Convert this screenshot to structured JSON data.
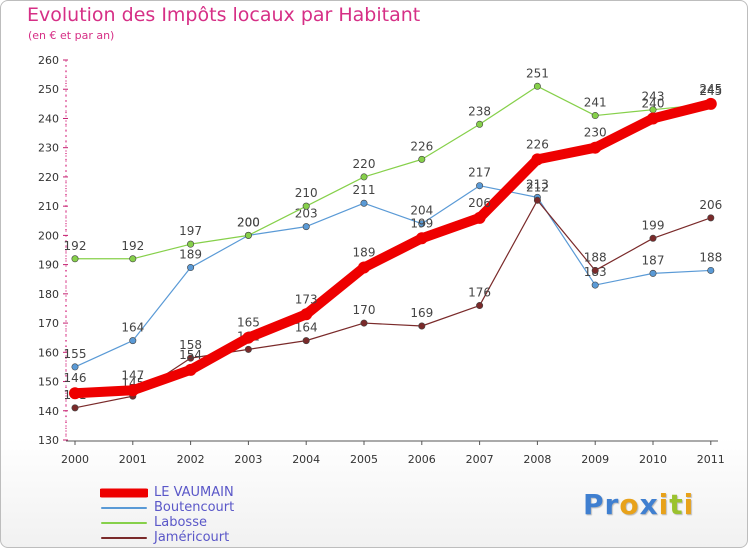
{
  "title": "Evolution des Impôts locaux par Habitant",
  "subtitle": "(en € et par an)",
  "logo": {
    "text": "Proxiti",
    "colors": [
      "#3f7fd0",
      "#3f7fd0",
      "#e8a21a",
      "#3f7fd0",
      "#e8a21a",
      "#9bc22f",
      "#e8a21a"
    ]
  },
  "chart_data": {
    "type": "line",
    "title": "Evolution des Impôts locaux par Habitant",
    "subtitle": "(en € et par an)",
    "xlabel": "",
    "ylabel": "",
    "categories": [
      "2000",
      "2001",
      "2002",
      "2003",
      "2004",
      "2005",
      "2006",
      "2007",
      "2008",
      "2009",
      "2010",
      "2011"
    ],
    "ylim": [
      130,
      260
    ],
    "yticks": [
      130,
      140,
      150,
      160,
      170,
      180,
      190,
      200,
      210,
      220,
      230,
      240,
      250,
      260
    ],
    "grid": false,
    "legend_position": "bottom-left",
    "series": [
      {
        "name": "Boutencourt",
        "color": "#5a9ad6",
        "thick": false,
        "values": [
          155,
          164,
          189,
          200,
          203,
          211,
          204,
          217,
          213,
          183,
          187,
          188
        ],
        "labels": [
          "155",
          "164",
          "189",
          "200",
          "203",
          "211",
          "204",
          "217",
          "213",
          "183",
          "187",
          "188"
        ]
      },
      {
        "name": "Labosse",
        "color": "#86d04a",
        "thick": false,
        "values": [
          192,
          192,
          197,
          200,
          210,
          220,
          226,
          238,
          251,
          241,
          243,
          245
        ],
        "labels": [
          "192",
          "192",
          "197",
          "200",
          "210",
          "220",
          "226",
          "238",
          "251",
          "241",
          "243",
          "245"
        ]
      },
      {
        "name": "Jaméricourt",
        "color": "#7a2a2a",
        "thick": false,
        "values": [
          141,
          145,
          158,
          161,
          164,
          170,
          169,
          176,
          212,
          188,
          199,
          206
        ],
        "labels": [
          "141",
          "145",
          "158",
          "161",
          "164",
          "170",
          "169",
          "176",
          "212",
          "188",
          "199",
          "206"
        ]
      },
      {
        "name": "LE VAUMAIN",
        "color": "#ee0000",
        "thick": true,
        "values": [
          146,
          147,
          154,
          165,
          173,
          189,
          199,
          206,
          226,
          230,
          240,
          245
        ],
        "labels": [
          "146",
          "147",
          "154",
          "165",
          "173",
          "189",
          "199",
          "206",
          "226",
          "230",
          "240",
          "245"
        ]
      }
    ]
  },
  "legend": [
    {
      "name": "LE VAUMAIN",
      "color": "#ee0000",
      "thick": true
    },
    {
      "name": "Boutencourt",
      "color": "#5a9ad6",
      "thick": false
    },
    {
      "name": "Labosse",
      "color": "#86d04a",
      "thick": false
    },
    {
      "name": "Jaméricourt",
      "color": "#7a2a2a",
      "thick": false
    }
  ]
}
